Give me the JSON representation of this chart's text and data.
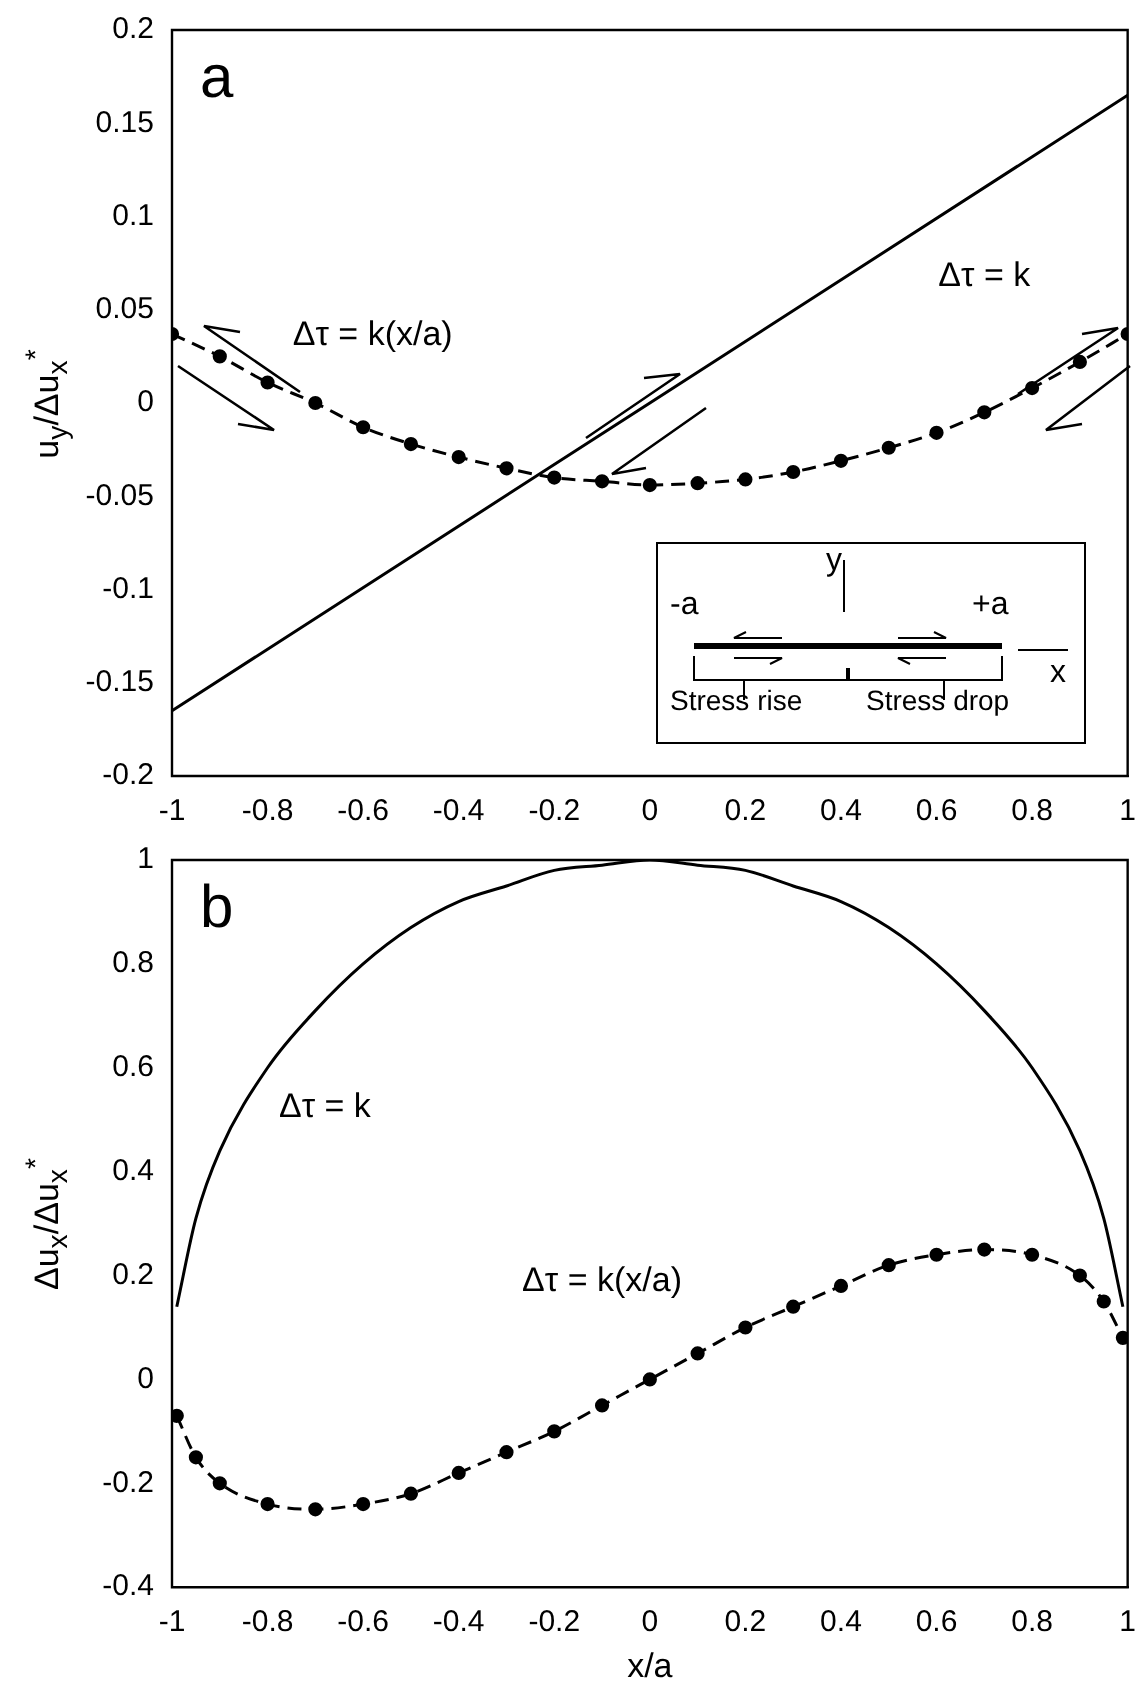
{
  "chart_data": [
    {
      "type": "line",
      "ylabel": "u$_{y}$/Δu$_{x}$$^{*}$",
      "annotations": [
        "a",
        "y",
        "-a",
        "+a",
        "x",
        "Stress rise",
        "Stress drop"
      ],
      "x": [
        -1,
        -0.9,
        -0.8,
        -0.7,
        -0.6,
        -0.5,
        -0.4,
        -0.3,
        -0.2,
        -0.1,
        0,
        0.1,
        0.2,
        0.3,
        0.4,
        0.5,
        0.6,
        0.7,
        0.8,
        0.9,
        1
      ],
      "series": [
        {
          "name": "Δτ = k",
          "color": "#000000",
          "line_style": "solid",
          "marker": "none",
          "x": [
            -1,
            1
          ],
          "values": [
            -0.165,
            0.165
          ]
        },
        {
          "name": "Δτ = k(x/a)",
          "color": "#000000",
          "line_style": "dashed",
          "marker": "circle",
          "values": [
            0.037,
            0.025,
            0.011,
            0.0,
            -0.013,
            -0.022,
            -0.029,
            -0.035,
            -0.04,
            -0.042,
            -0.044,
            -0.043,
            -0.041,
            -0.037,
            -0.031,
            -0.024,
            -0.016,
            -0.005,
            0.008,
            0.022,
            0.037
          ]
        }
      ],
      "xlim": [
        -1,
        1
      ],
      "xticks": [
        -1,
        -0.8,
        -0.6,
        -0.4,
        -0.2,
        0,
        0.2,
        0.4,
        0.6,
        0.8,
        1
      ],
      "ylim": [
        -0.2,
        0.2
      ],
      "yticks": [
        -0.2,
        -0.15,
        -0.1,
        -0.05,
        0,
        0.05,
        0.1,
        0.15,
        0.2
      ]
    },
    {
      "type": "line",
      "ylabel": "Δu$_{x}$/Δu$_{x}$$^{*}$",
      "xlabel": "x/a",
      "annotations": [
        "b"
      ],
      "x": [
        -0.99,
        -0.95,
        -0.9,
        -0.8,
        -0.7,
        -0.6,
        -0.5,
        -0.4,
        -0.3,
        -0.2,
        -0.1,
        0,
        0.1,
        0.2,
        0.3,
        0.4,
        0.5,
        0.6,
        0.7,
        0.8,
        0.9,
        0.95,
        0.99
      ],
      "series": [
        {
          "name": "Δτ = k",
          "color": "#000000",
          "line_style": "solid",
          "marker": "none",
          "values": [
            0.14,
            0.31,
            0.44,
            0.6,
            0.71,
            0.8,
            0.87,
            0.92,
            0.95,
            0.98,
            0.99,
            1,
            0.99,
            0.98,
            0.95,
            0.92,
            0.87,
            0.8,
            0.71,
            0.6,
            0.44,
            0.31,
            0.14
          ]
        },
        {
          "name": "Δτ = k(x/a)",
          "color": "#000000",
          "line_style": "dashed",
          "marker": "circle",
          "values": [
            -0.07,
            -0.15,
            -0.2,
            -0.24,
            -0.25,
            -0.24,
            -0.22,
            -0.18,
            -0.14,
            -0.1,
            -0.05,
            0,
            0.05,
            0.1,
            0.14,
            0.18,
            0.22,
            0.24,
            0.25,
            0.24,
            0.2,
            0.15,
            0.08
          ]
        }
      ],
      "xlim": [
        -1,
        1
      ],
      "xticks": [
        -1,
        -0.8,
        -0.6,
        -0.4,
        -0.2,
        0,
        0.2,
        0.4,
        0.6,
        0.8,
        1
      ],
      "ylim": [
        -0.4,
        1
      ],
      "yticks": [
        -0.4,
        -0.2,
        0,
        0.2,
        0.4,
        0.6,
        0.8,
        1
      ]
    }
  ]
}
